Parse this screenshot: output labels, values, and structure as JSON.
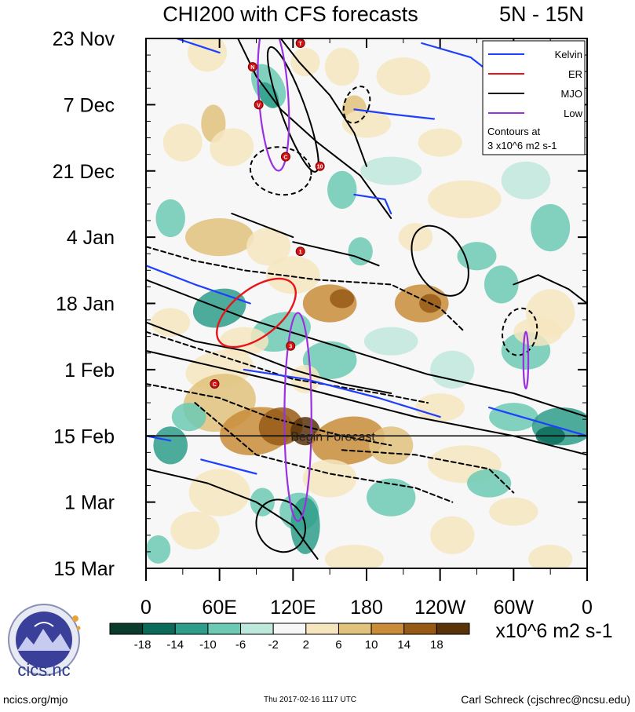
{
  "chart_data": {
    "type": "heatmap",
    "title": "CHI200 with CFS forecasts",
    "lat_band": "5N - 15N",
    "x_tick_labels": [
      "0",
      "60E",
      "120E",
      "180",
      "120W",
      "60W",
      "0"
    ],
    "x_range_deg": [
      0,
      360
    ],
    "y_tick_labels": [
      "23 Nov",
      "7 Dec",
      "21 Dec",
      "4 Jan",
      "18 Jan",
      "1 Feb",
      "15 Feb",
      "1 Mar",
      "15 Mar"
    ],
    "y_range_days": [
      0,
      112
    ],
    "forecast_start_day": 84,
    "forecast_label": "Begin Forecast",
    "legend": [
      {
        "name": "Kelvin",
        "color": "#1f3fff"
      },
      {
        "name": "ER",
        "color": "#e8141a"
      },
      {
        "name": "MJO",
        "color": "#000000"
      },
      {
        "name": "Low",
        "color": "#9b30e0"
      }
    ],
    "contour_note_line1": "Contours at",
    "contour_note_line2": "3 x10^6 m2 s-1",
    "colorbar": {
      "labels": [
        "-18",
        "-14",
        "-10",
        "-6",
        "-2",
        "2",
        "6",
        "10",
        "14",
        "18"
      ],
      "unit": "x10^6 m2 s-1",
      "colors": [
        "#0a3b2c",
        "#0b6b5b",
        "#2e9e8a",
        "#6ccab4",
        "#bfe8dc",
        "#f7f7f7",
        "#f6e6c0",
        "#e0c27c",
        "#c98d3a",
        "#965a16",
        "#5a330b"
      ]
    },
    "storm_markers": [
      {
        "label": "T",
        "lon": 126,
        "day": 1
      },
      {
        "label": "N",
        "lon": 87,
        "day": 6
      },
      {
        "label": "V",
        "lon": 92,
        "day": 14
      },
      {
        "label": "C",
        "lon": 114,
        "day": 25
      },
      {
        "label": "10",
        "lon": 142,
        "day": 27
      },
      {
        "label": "1",
        "lon": 126,
        "day": 45
      },
      {
        "label": "3",
        "lon": 118,
        "day": 65
      },
      {
        "label": "C",
        "lon": 56,
        "day": 73
      }
    ]
  },
  "footer": {
    "logo_text": "cics.nc",
    "site": "ncics.org/mjo",
    "timestamp": "Thu 2017-02-16 1117 UTC",
    "author": "Carl Schreck (cjschrec@ncsu.edu)"
  }
}
